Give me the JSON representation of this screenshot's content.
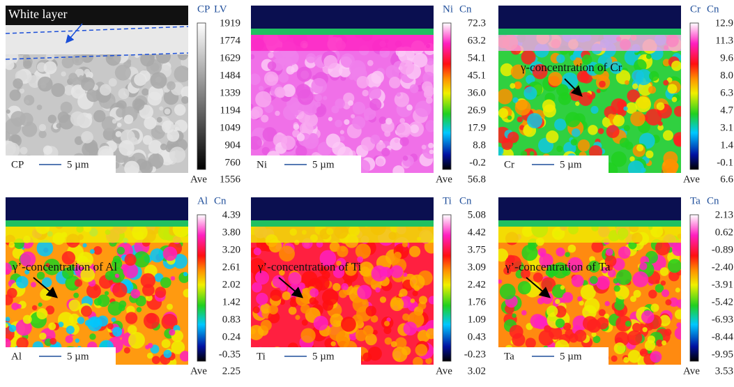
{
  "panels": [
    {
      "element": "CP",
      "unit": "LV",
      "scale": [
        "1919",
        "1774",
        "1629",
        "1484",
        "1339",
        "1194",
        "1049",
        "904",
        "760"
      ],
      "ave_label": "Ave",
      "ave": "1556",
      "scalebar_element": "CP",
      "scalebar": "5 µm",
      "annotation": "White layer"
    },
    {
      "element": "Ni",
      "unit": "Cn",
      "scale": [
        "72.3",
        "63.2",
        "54.1",
        "45.1",
        "36.0",
        "26.9",
        "17.9",
        "8.8",
        "-0.2"
      ],
      "ave_label": "Ave",
      "ave": "56.8",
      "scalebar_element": "Ni",
      "scalebar": "5 µm"
    },
    {
      "element": "Cr",
      "unit": "Cn",
      "scale": [
        "12.9",
        "11.3",
        "9.6",
        "8.0",
        "6.3",
        "4.7",
        "3.1",
        "1.4",
        "-0.1"
      ],
      "ave_label": "Ave",
      "ave": "6.6",
      "scalebar_element": "Cr",
      "scalebar": "5 µm",
      "annotation": "γ-concentration of Cr"
    },
    {
      "element": "Al",
      "unit": "Cn",
      "scale": [
        "4.39",
        "3.80",
        "3.20",
        "2.61",
        "2.02",
        "1.42",
        "0.83",
        "0.24",
        "-0.35"
      ],
      "ave_label": "Ave",
      "ave": "2.25",
      "scalebar_element": "Al",
      "scalebar": "5 µm",
      "annotation": "γ’-concentration of Al"
    },
    {
      "element": "Ti",
      "unit": "Cn",
      "scale": [
        "5.08",
        "4.42",
        "3.75",
        "3.09",
        "2.42",
        "1.76",
        "1.09",
        "0.43",
        "-0.23"
      ],
      "ave_label": "Ave",
      "ave": "3.02",
      "scalebar_element": "Ti",
      "scalebar": "5 µm",
      "annotation": "γ’-concentration of Ti"
    },
    {
      "element": "Ta",
      "unit": "Cn",
      "scale": [
        "2.13",
        "0.62",
        "-0.89",
        "-2.40",
        "-3.91",
        "-5.42",
        "-6.93",
        "-8.44",
        "-9.95"
      ],
      "ave_label": "Ave",
      "ave": "3.53",
      "scalebar_element": "Ta",
      "scalebar": "5 µm",
      "annotation": "γ’-concentration of Ta"
    }
  ]
}
